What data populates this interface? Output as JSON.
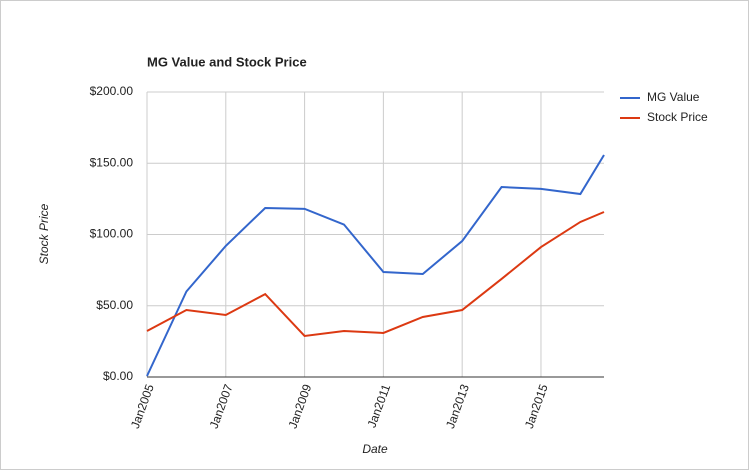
{
  "chart_data": {
    "type": "line",
    "title": "MG Value and Stock Price",
    "x_label": "Date",
    "y_label": "Stock Price",
    "x": [
      2005,
      2006,
      2007,
      2008,
      2009,
      2010,
      2011,
      2012,
      2013,
      2014,
      2015,
      2016,
      2016.6
    ],
    "series": [
      {
        "name": "MG Value",
        "color": "#3366cc",
        "values": [
          0.7,
          60,
          92,
          118.6,
          118,
          107,
          73.7,
          72.3,
          95.4,
          133.3,
          132,
          128.4,
          155.8
        ]
      },
      {
        "name": "Stock Price",
        "color": "#dc3912",
        "values": [
          32.3,
          47,
          43.5,
          58.2,
          28.8,
          32.3,
          30.9,
          42.1,
          47,
          68.8,
          91.2,
          108.8,
          115.8
        ]
      }
    ],
    "xlim": [
      2005,
      2016.6
    ],
    "xticks": [
      {
        "value": 2005,
        "label": "Jan2005"
      },
      {
        "value": 2007,
        "label": "Jan2007"
      },
      {
        "value": 2009,
        "label": "Jan2009"
      },
      {
        "value": 2011,
        "label": "Jan2011"
      },
      {
        "value": 2013,
        "label": "Jan2013"
      },
      {
        "value": 2015,
        "label": "Jan2015"
      }
    ],
    "ylim": [
      0,
      200
    ],
    "yticks": [
      {
        "value": 0,
        "label": "$0.00"
      },
      {
        "value": 50,
        "label": "$50.00"
      },
      {
        "value": 100,
        "label": "$100.00"
      },
      {
        "value": 150,
        "label": "$150.00"
      },
      {
        "value": 200,
        "label": "$200.00"
      }
    ],
    "grid": true,
    "legend": "right"
  }
}
